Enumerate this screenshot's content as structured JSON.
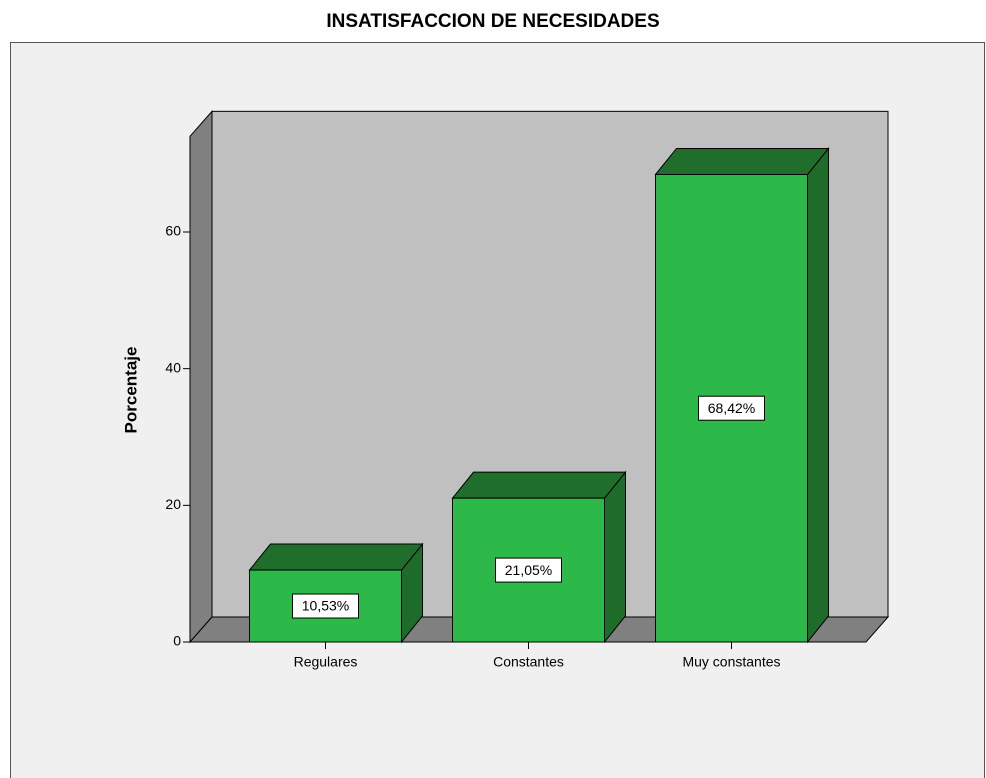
{
  "chart_data": {
    "type": "bar3d",
    "title": "INSATISFACCION DE NECESIDADES",
    "y_label": "Porcentaje",
    "categories": [
      "Regulares",
      "Constantes",
      "Muy constantes"
    ],
    "values": [
      10.53,
      21.05,
      68.42
    ],
    "value_labels": [
      "10,53%",
      "21,05%",
      "68,42%"
    ],
    "color": "#2db84a",
    "ylim": [
      0,
      74
    ],
    "yticks": [
      0,
      20,
      40,
      60
    ]
  }
}
